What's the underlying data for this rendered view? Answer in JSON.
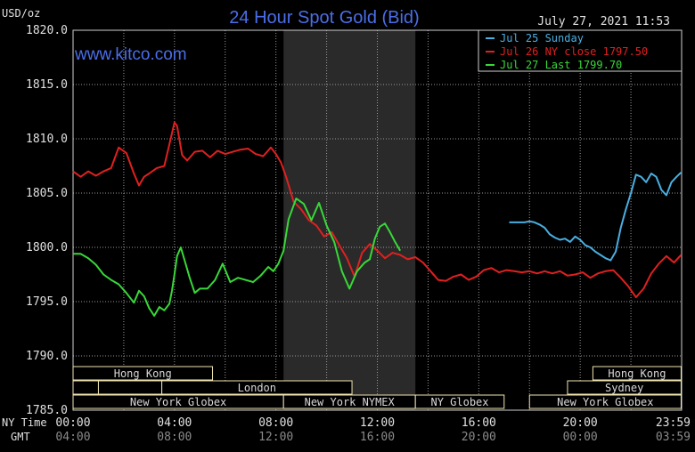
{
  "chart_data": {
    "type": "line",
    "title": "24 Hour Spot Gold (Bid)",
    "timestamp": "July 27, 2021 11:53",
    "watermark": "www.kitco.com",
    "ylabel": "USD/oz",
    "ylim": [
      1785,
      1820
    ],
    "y_ticks": [
      "1820.0",
      "1815.0",
      "1810.0",
      "1805.0",
      "1800.0",
      "1795.0",
      "1790.0",
      "1785.0"
    ],
    "xlim": [
      0,
      24
    ],
    "x_ticks_ny": [
      "00:00",
      "04:00",
      "08:00",
      "12:00",
      "16:00",
      "20:00",
      "23:59"
    ],
    "x_ticks_gmt": [
      "04:00",
      "08:00",
      "12:00",
      "16:00",
      "20:00",
      "00:00",
      "03:59"
    ],
    "x_row_labels": {
      "ny": "NY Time",
      "gmt": "GMT"
    },
    "grid": true,
    "legend_position": "top-right",
    "highlight_band": [
      8.3,
      13.5
    ],
    "colors": {
      "background": "#000000",
      "grid": "#9a9a9a",
      "title": "#4a6ee8",
      "watermark": "#4a6ee8",
      "axis_text": "#e0e0e0",
      "band": "#2a2a2a",
      "session_box": "#f0e4b0",
      "session_text": "#d8d8d8"
    },
    "series": [
      {
        "name": "Jul 25 Sunday",
        "label": "Jul 25 Sunday",
        "color": "#4aaee0",
        "x": [
          17.2,
          17.5,
          17.8,
          18.0,
          18.2,
          18.4,
          18.6,
          18.8,
          19.0,
          19.2,
          19.4,
          19.6,
          19.8,
          20.0,
          20.2,
          20.4,
          20.6,
          20.8,
          21.0,
          21.2,
          21.4,
          21.6,
          21.8,
          22.0,
          22.2,
          22.4,
          22.6,
          22.8,
          23.0,
          23.2,
          23.4,
          23.6,
          23.8,
          23.98
        ],
        "values": [
          1802.3,
          1802.3,
          1802.3,
          1802.4,
          1802.3,
          1802.1,
          1801.8,
          1801.2,
          1800.9,
          1800.7,
          1800.8,
          1800.5,
          1801.0,
          1800.7,
          1800.2,
          1800.0,
          1799.6,
          1799.3,
          1799.0,
          1798.8,
          1799.6,
          1801.8,
          1803.5,
          1805.0,
          1806.7,
          1806.5,
          1806.0,
          1806.8,
          1806.5,
          1805.3,
          1804.8,
          1806.0,
          1806.5,
          1806.9
        ]
      },
      {
        "name": "Jul 26 NY close 1797.50",
        "label": "Jul 26 NY close 1797.50",
        "color": "#e02020",
        "x": [
          0.0,
          0.3,
          0.6,
          0.9,
          1.2,
          1.5,
          1.8,
          2.1,
          2.4,
          2.6,
          2.8,
          3.0,
          3.3,
          3.6,
          3.9,
          4.0,
          4.1,
          4.3,
          4.5,
          4.8,
          5.1,
          5.4,
          5.7,
          6.0,
          6.3,
          6.6,
          6.9,
          7.2,
          7.5,
          7.8,
          8.0,
          8.2,
          8.4,
          8.7,
          9.0,
          9.3,
          9.6,
          9.9,
          10.2,
          10.5,
          10.8,
          11.1,
          11.4,
          11.7,
          12.0,
          12.3,
          12.6,
          12.9,
          13.2,
          13.5,
          13.8,
          14.1,
          14.4,
          14.7,
          15.0,
          15.3,
          15.6,
          15.9,
          16.2,
          16.5,
          16.8,
          17.1,
          17.4,
          17.7,
          18.0,
          18.3,
          18.6,
          18.9,
          19.2,
          19.5,
          19.8,
          20.1,
          20.4,
          20.7,
          21.0,
          21.3,
          21.6,
          21.9,
          22.2,
          22.5,
          22.8,
          23.1,
          23.4,
          23.7,
          23.98
        ],
        "values": [
          1807.0,
          1806.5,
          1807.0,
          1806.6,
          1807.0,
          1807.3,
          1809.2,
          1808.7,
          1806.8,
          1805.7,
          1806.5,
          1806.8,
          1807.3,
          1807.5,
          1810.5,
          1811.5,
          1811.2,
          1808.5,
          1808.0,
          1808.8,
          1808.9,
          1808.3,
          1808.9,
          1808.6,
          1808.8,
          1809.0,
          1809.1,
          1808.6,
          1808.4,
          1809.2,
          1808.6,
          1807.8,
          1806.5,
          1804.2,
          1803.5,
          1802.5,
          1802.0,
          1801.0,
          1801.4,
          1800.2,
          1799.0,
          1797.3,
          1799.5,
          1800.3,
          1799.7,
          1799.0,
          1799.5,
          1799.3,
          1798.9,
          1799.1,
          1798.6,
          1797.8,
          1797.0,
          1796.9,
          1797.3,
          1797.5,
          1797.0,
          1797.3,
          1797.9,
          1798.1,
          1797.7,
          1797.9,
          1797.8,
          1797.7,
          1797.8,
          1797.6,
          1797.8,
          1797.6,
          1797.8,
          1797.4,
          1797.5,
          1797.7,
          1797.2,
          1797.6,
          1797.8,
          1797.9,
          1797.2,
          1796.4,
          1795.4,
          1796.2,
          1797.6,
          1798.5,
          1799.2,
          1798.6,
          1799.3
        ]
      },
      {
        "name": "Jul 27 Last 1799.70",
        "label": "Jul 27 Last 1799.70",
        "color": "#38d838",
        "x": [
          0.0,
          0.3,
          0.6,
          0.9,
          1.2,
          1.5,
          1.8,
          2.1,
          2.4,
          2.6,
          2.8,
          3.0,
          3.2,
          3.4,
          3.6,
          3.8,
          3.9,
          4.0,
          4.1,
          4.25,
          4.4,
          4.6,
          4.8,
          5.0,
          5.3,
          5.6,
          5.9,
          6.2,
          6.5,
          6.8,
          7.1,
          7.4,
          7.7,
          7.9,
          8.1,
          8.3,
          8.5,
          8.8,
          9.1,
          9.4,
          9.7,
          10.0,
          10.3,
          10.6,
          10.9,
          11.2,
          11.5,
          11.7,
          11.9,
          12.1,
          12.3,
          12.5,
          12.7,
          12.9
        ],
        "values": [
          1799.4,
          1799.4,
          1799.0,
          1798.4,
          1797.5,
          1797.0,
          1796.6,
          1795.8,
          1794.9,
          1796.0,
          1795.5,
          1794.4,
          1793.7,
          1794.5,
          1794.2,
          1794.8,
          1796.0,
          1797.5,
          1799.2,
          1800.0,
          1798.8,
          1797.2,
          1795.8,
          1796.2,
          1796.2,
          1797.0,
          1798.5,
          1796.8,
          1797.2,
          1797.0,
          1796.8,
          1797.4,
          1798.2,
          1797.8,
          1798.5,
          1799.7,
          1802.6,
          1804.5,
          1804.0,
          1802.5,
          1804.1,
          1802.0,
          1800.5,
          1797.8,
          1796.2,
          1797.8,
          1798.6,
          1798.9,
          1800.8,
          1801.9,
          1802.2,
          1801.4,
          1800.5,
          1799.7
        ]
      }
    ],
    "sessions": [
      {
        "label": "Hong Kong",
        "start": 0.0,
        "end": 5.5,
        "row": 0
      },
      {
        "label": "Hong Kong",
        "start": 20.5,
        "end": 23.98,
        "row": 0
      },
      {
        "label": "",
        "start": 0.0,
        "end": 1.0,
        "row": 1
      },
      {
        "label": "",
        "start": 1.0,
        "end": 3.5,
        "row": 1
      },
      {
        "label": "London",
        "start": 3.5,
        "end": 11.0,
        "row": 1
      },
      {
        "label": "Sydney",
        "start": 19.5,
        "end": 23.98,
        "row": 1
      },
      {
        "label": "New York Globex",
        "start": 0.0,
        "end": 8.3,
        "row": 2
      },
      {
        "label": "New York NYMEX",
        "start": 8.3,
        "end": 13.5,
        "row": 2
      },
      {
        "label": "NY Globex",
        "start": 13.5,
        "end": 17.0,
        "row": 2
      },
      {
        "label": "New York Globex",
        "start": 18.0,
        "end": 23.98,
        "row": 2
      }
    ]
  }
}
